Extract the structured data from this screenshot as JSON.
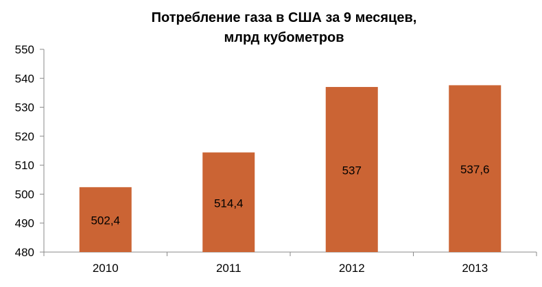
{
  "chart_data": {
    "type": "bar",
    "title_lines": [
      "Потребление газа в США за 9 месяцев,",
      "млрд кубометров"
    ],
    "categories": [
      "2010",
      "2011",
      "2012",
      "2013"
    ],
    "values": [
      502.4,
      514.4,
      537,
      537.6
    ],
    "data_labels": [
      "502,4",
      "514,4",
      "537",
      "537,6"
    ],
    "ylim": [
      480,
      550
    ],
    "yticks": [
      480,
      490,
      500,
      510,
      520,
      530,
      540,
      550
    ],
    "xlabel": "",
    "ylabel": "",
    "grid": false,
    "legend": "none",
    "bar_color": "#cb6434",
    "axis_color": "#888888"
  }
}
